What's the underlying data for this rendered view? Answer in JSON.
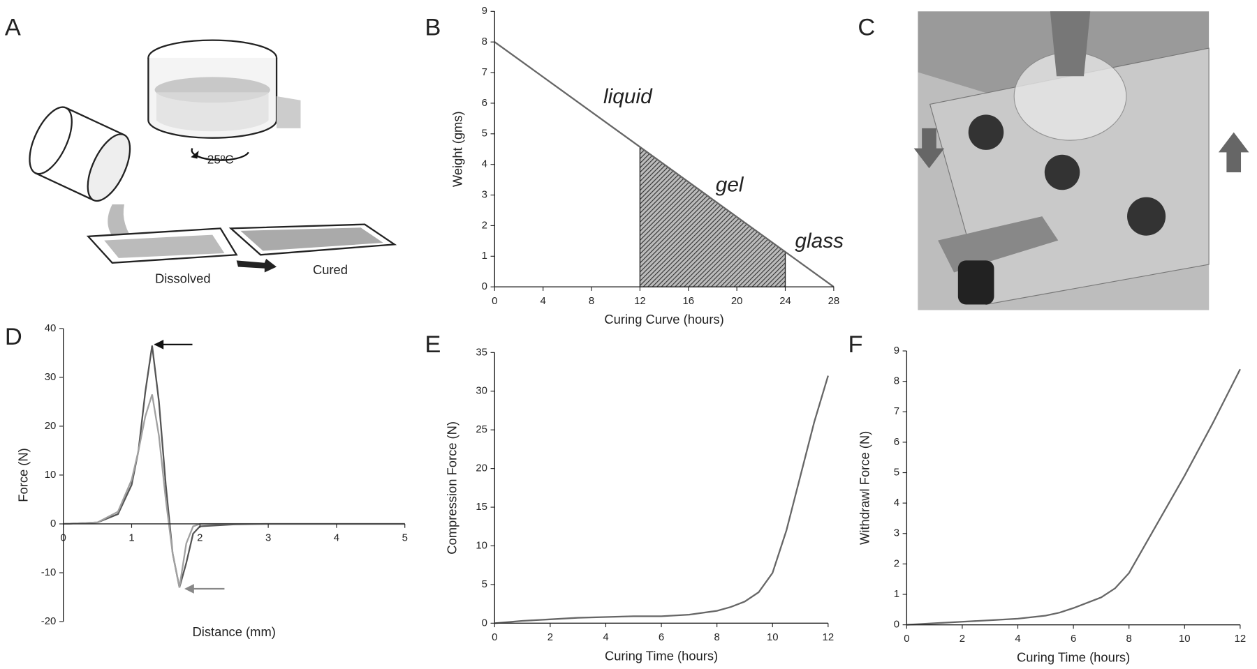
{
  "chart_data": [
    {
      "panel_label": "B",
      "type": "line",
      "x_label": "Curing Curve (hours)",
      "y_label": "Weight (gms)",
      "x": [
        0,
        28
      ],
      "series": [
        {
          "color": "#666666",
          "values": [
            8,
            0
          ]
        }
      ],
      "shaded_range": [
        12,
        24
      ],
      "annotations": [
        "liquid",
        "gel",
        "glass"
      ],
      "xlim": [
        0,
        28
      ],
      "xticks": [
        0,
        4,
        8,
        12,
        16,
        20,
        24,
        28
      ],
      "ylim": [
        0,
        9
      ],
      "yticks": [
        0,
        1,
        2,
        3,
        4,
        5,
        6,
        7,
        8,
        9
      ]
    },
    {
      "panel_label": "D",
      "type": "line",
      "x_label": "Distance (mm)",
      "y_label": "Force (N)",
      "x": [
        0,
        0.5,
        0.8,
        1.0,
        1.1,
        1.2,
        1.3,
        1.4,
        1.5,
        1.6,
        1.7,
        1.8,
        1.9,
        2.0,
        2.5,
        3,
        4,
        5
      ],
      "series": [
        {
          "color": "#555555",
          "values": [
            0,
            0.3,
            2,
            8,
            15,
            27,
            36.5,
            25,
            8,
            -6,
            -13,
            -8,
            -2,
            -0.5,
            -0.1,
            0,
            0,
            0
          ]
        },
        {
          "color": "#a0a0a0",
          "values": [
            0,
            0.3,
            2.5,
            9,
            15,
            22,
            26.5,
            18,
            5,
            -6,
            -13,
            -4,
            -0.5,
            0,
            0,
            0,
            0,
            0
          ]
        }
      ],
      "xlim": [
        0,
        5
      ],
      "xticks": [
        0,
        1,
        2,
        3,
        4,
        5
      ],
      "ylim": [
        -20,
        40
      ],
      "yticks": [
        -20,
        -10,
        0,
        10,
        20,
        30,
        40
      ]
    },
    {
      "panel_label": "E",
      "type": "line",
      "x_label": "Curing Time (hours)",
      "y_label": "Compression Force (N)",
      "x": [
        0,
        1,
        2,
        3,
        4,
        5,
        6,
        7,
        8,
        8.5,
        9,
        9.5,
        10,
        10.5,
        11,
        11.5,
        12
      ],
      "series": [
        {
          "color": "#666666",
          "values": [
            0,
            0.3,
            0.5,
            0.7,
            0.8,
            0.9,
            0.9,
            1.1,
            1.6,
            2.1,
            2.8,
            4,
            6.5,
            12,
            19,
            26,
            32
          ]
        }
      ],
      "xlim": [
        0,
        12
      ],
      "xticks": [
        0,
        2,
        4,
        6,
        8,
        10,
        12
      ],
      "ylim": [
        0,
        35
      ],
      "yticks": [
        0,
        5,
        10,
        15,
        20,
        25,
        30,
        35
      ]
    },
    {
      "panel_label": "F",
      "type": "line",
      "x_label": "Curing Time (hours)",
      "y_label": "Withdrawl Force (N)",
      "x": [
        0,
        1,
        2,
        3,
        4,
        5,
        5.5,
        6,
        7,
        7.5,
        8,
        9,
        10,
        11,
        12
      ],
      "series": [
        {
          "color": "#666666",
          "values": [
            0,
            0.05,
            0.1,
            0.15,
            0.2,
            0.3,
            0.4,
            0.55,
            0.9,
            1.2,
            1.7,
            3.3,
            4.9,
            6.6,
            8.4
          ]
        }
      ],
      "xlim": [
        0,
        12
      ],
      "xticks": [
        0,
        2,
        4,
        6,
        8,
        10,
        12
      ],
      "ylim": [
        0,
        9
      ],
      "yticks": [
        0,
        1,
        2,
        3,
        4,
        5,
        6,
        7,
        8,
        9
      ]
    }
  ],
  "illustration": {
    "panel_label": "A",
    "temperature": "25ºC",
    "left_label": "Dissolved",
    "right_label": "Cured"
  },
  "photo": {
    "panel_label": "C"
  }
}
